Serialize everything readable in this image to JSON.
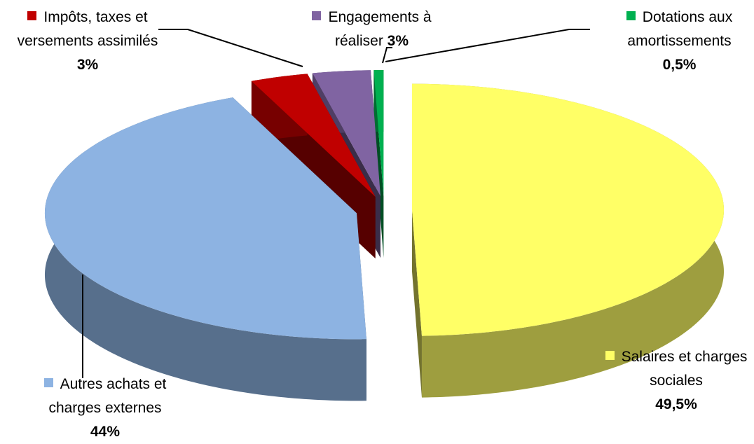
{
  "chart_data": {
    "type": "pie",
    "categories": [
      "Salaires et charges sociales",
      "Autres achats et charges externes",
      "Impôts, taxes et versements assimilés",
      "Engagements à réaliser",
      "Dotations aux amortissements"
    ],
    "values": [
      49.5,
      44,
      3,
      3,
      0.5
    ],
    "value_labels": [
      "49,5%",
      "44%",
      "3%",
      "3%",
      "0,5%"
    ],
    "colors": [
      "#ffff66",
      "#8db3e2",
      "#c00000",
      "#8064a2",
      "#00b050"
    ]
  }
}
